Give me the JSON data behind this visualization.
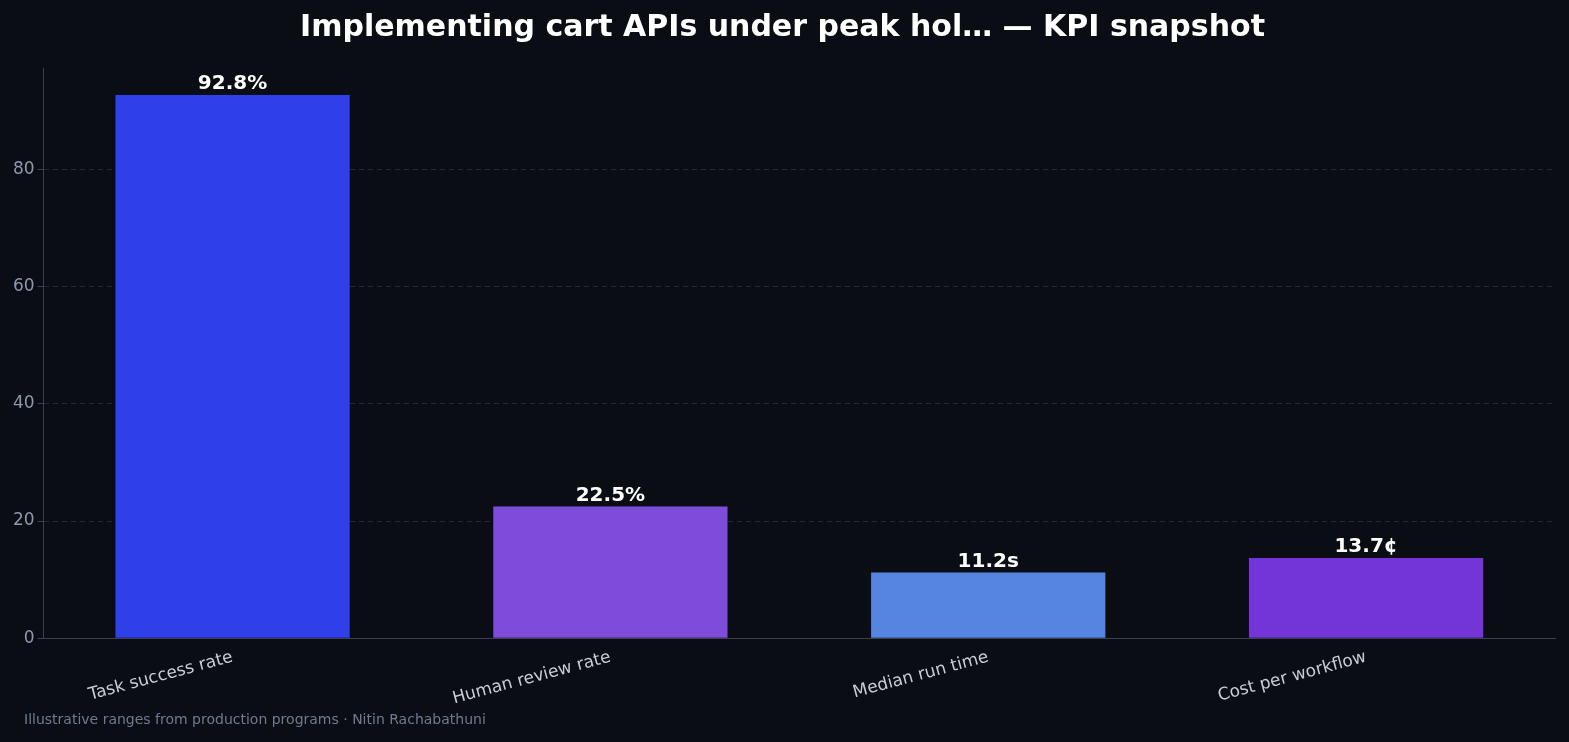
{
  "chart_data": {
    "type": "bar",
    "title": "Implementing cart APIs under peak hol… — KPI snapshot",
    "categories": [
      "Task success rate",
      "Human review rate",
      "Median run time",
      "Cost per workflow"
    ],
    "values": [
      92.8,
      22.5,
      11.2,
      13.7
    ],
    "colors": [
      "#2f40ea",
      "#7d4cdb",
      "#5585e0",
      "#7435d8"
    ],
    "value_labels": [
      "92.8%",
      "22.5%",
      "11.2s",
      "13.7¢"
    ],
    "ylim": [
      0,
      97.4
    ],
    "yticks": [
      0,
      20,
      40,
      60,
      80
    ],
    "grid": "y",
    "legend": false,
    "annotations": [
      "Illustrative ranges from production programs · Nitin Rachabathuni"
    ]
  }
}
